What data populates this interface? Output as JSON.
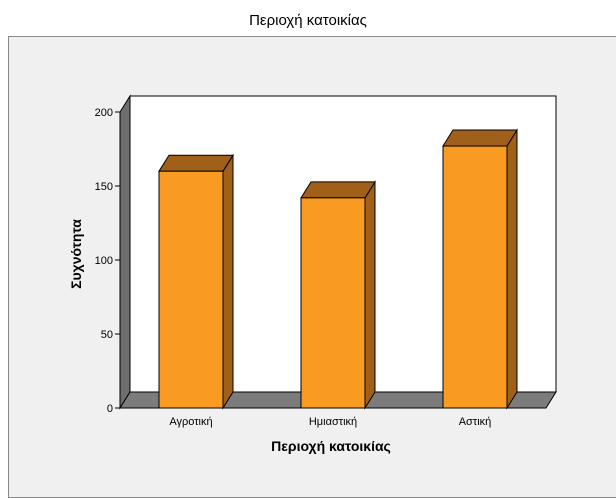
{
  "title": "Περιοχή κατοικίας",
  "chart_data": {
    "type": "bar",
    "title": "Περιοχή κατοικίας",
    "xlabel": "Περιοχή κατοικίας",
    "ylabel": "Συχνότητα",
    "categories": [
      "Αγροτική",
      "Ημιαστική",
      "Αστική"
    ],
    "values": [
      160,
      142,
      177
    ],
    "ylim": [
      0,
      200
    ],
    "yticks": [
      0,
      50,
      100,
      150,
      200
    ],
    "grid": false,
    "legend": "none",
    "colors": {
      "bar_front": "#f99b20",
      "bar_top": "#a0601a",
      "bar_side": "#a0601a",
      "plot_back": "#ffffff",
      "wall_left": "#6e6e6e",
      "floor": "#7c7c7c",
      "frame_bg": "#f0f0f0"
    }
  }
}
